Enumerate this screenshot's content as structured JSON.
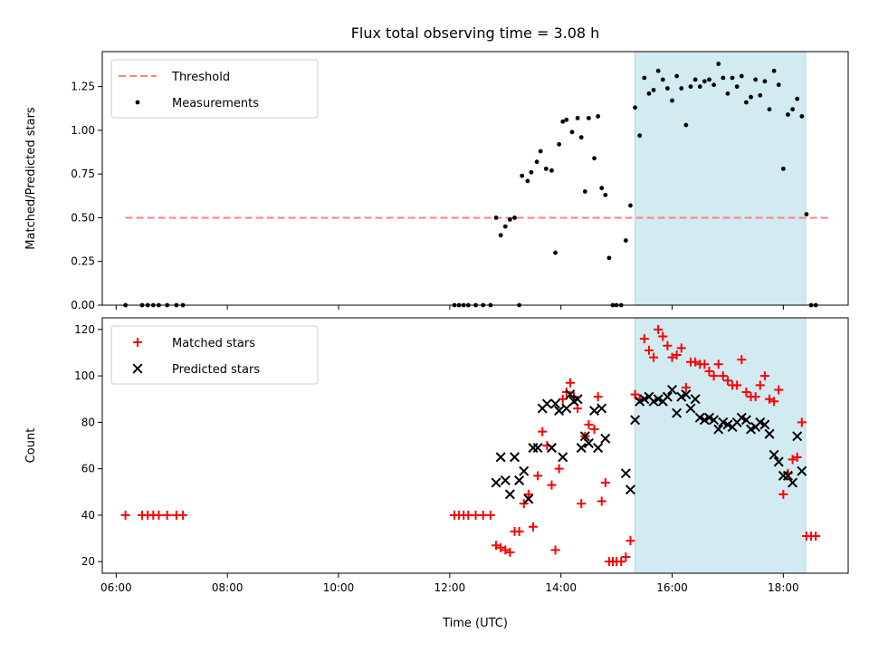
{
  "figure": {
    "title": "Flux total observing time = 3.08 h",
    "xlabel": "Time (UTC)"
  },
  "chart_data": [
    {
      "type": "scatter",
      "title": "Flux total observing time = 3.08 h",
      "xlabel": "",
      "ylabel": "Matched/Predicted stars",
      "xlim": [
        "05:45",
        "19:10"
      ],
      "ylim": [
        0,
        1.45
      ],
      "yticks": [
        0,
        0.25,
        0.5,
        0.75,
        1.0,
        1.25
      ],
      "ytick_labels": [
        "0.00",
        "0.25",
        "0.50",
        "0.75",
        "1.00",
        "1.25"
      ],
      "legend_position": "top-left",
      "highlight_span": {
        "from": "15:20",
        "to": "18:24",
        "color": "#add8e6"
      },
      "threshold": {
        "name": "Threshold",
        "value": 0.5,
        "from": "06:10",
        "to": "18:50",
        "color": "#ff7f7f"
      },
      "series": [
        {
          "name": "Measurements",
          "color": "#000000",
          "points": [
            [
              "06:10",
              0
            ],
            [
              "06:28",
              0
            ],
            [
              "06:34",
              0
            ],
            [
              "06:40",
              0
            ],
            [
              "06:46",
              0
            ],
            [
              "06:55",
              0
            ],
            [
              "07:05",
              0
            ],
            [
              "07:12",
              0
            ],
            [
              "12:05",
              0
            ],
            [
              "12:10",
              0
            ],
            [
              "12:15",
              0
            ],
            [
              "12:20",
              0
            ],
            [
              "12:28",
              0
            ],
            [
              "12:36",
              0
            ],
            [
              "12:44",
              0
            ],
            [
              "13:15",
              0
            ],
            [
              "12:50",
              0.5
            ],
            [
              "12:55",
              0.4
            ],
            [
              "13:00",
              0.45
            ],
            [
              "13:05",
              0.49
            ],
            [
              "13:10",
              0.5
            ],
            [
              "13:18",
              0.74
            ],
            [
              "13:24",
              0.71
            ],
            [
              "13:28",
              0.76
            ],
            [
              "13:34",
              0.82
            ],
            [
              "13:38",
              0.88
            ],
            [
              "13:44",
              0.78
            ],
            [
              "13:50",
              0.77
            ],
            [
              "13:54",
              0.3
            ],
            [
              "13:58",
              0.92
            ],
            [
              "14:02",
              1.05
            ],
            [
              "14:06",
              1.06
            ],
            [
              "14:12",
              0.99
            ],
            [
              "14:18",
              1.07
            ],
            [
              "14:22",
              0.96
            ],
            [
              "14:26",
              0.65
            ],
            [
              "14:30",
              1.07
            ],
            [
              "14:36",
              0.84
            ],
            [
              "14:40",
              1.08
            ],
            [
              "14:44",
              0.67
            ],
            [
              "14:48",
              0.63
            ],
            [
              "14:52",
              0.27
            ],
            [
              "14:56",
              0
            ],
            [
              "15:00",
              0
            ],
            [
              "15:05",
              0
            ],
            [
              "15:10",
              0.37
            ],
            [
              "15:15",
              0.57
            ],
            [
              "15:20",
              1.13
            ],
            [
              "15:25",
              0.97
            ],
            [
              "15:30",
              1.3
            ],
            [
              "15:35",
              1.21
            ],
            [
              "15:40",
              1.23
            ],
            [
              "15:45",
              1.34
            ],
            [
              "15:50",
              1.29
            ],
            [
              "15:55",
              1.24
            ],
            [
              "16:00",
              1.17
            ],
            [
              "16:05",
              1.31
            ],
            [
              "16:10",
              1.24
            ],
            [
              "16:15",
              1.03
            ],
            [
              "16:20",
              1.25
            ],
            [
              "16:25",
              1.29
            ],
            [
              "16:30",
              1.25
            ],
            [
              "16:35",
              1.28
            ],
            [
              "16:40",
              1.29
            ],
            [
              "16:45",
              1.26
            ],
            [
              "16:50",
              1.38
            ],
            [
              "16:55",
              1.3
            ],
            [
              "17:00",
              1.21
            ],
            [
              "17:05",
              1.3
            ],
            [
              "17:10",
              1.25
            ],
            [
              "17:15",
              1.31
            ],
            [
              "17:20",
              1.16
            ],
            [
              "17:25",
              1.19
            ],
            [
              "17:30",
              1.29
            ],
            [
              "17:35",
              1.2
            ],
            [
              "17:40",
              1.28
            ],
            [
              "17:45",
              1.12
            ],
            [
              "17:50",
              1.34
            ],
            [
              "17:55",
              1.26
            ],
            [
              "18:00",
              0.78
            ],
            [
              "18:05",
              1.09
            ],
            [
              "18:10",
              1.12
            ],
            [
              "18:15",
              1.18
            ],
            [
              "18:20",
              1.08
            ],
            [
              "18:25",
              0.52
            ],
            [
              "18:30",
              0
            ],
            [
              "18:35",
              0
            ]
          ]
        }
      ]
    },
    {
      "type": "scatter",
      "title": "",
      "xlabel": "Time (UTC)",
      "ylabel": "Count",
      "xlim": [
        "05:45",
        "19:10"
      ],
      "ylim": [
        15,
        125
      ],
      "yticks": [
        20,
        40,
        60,
        80,
        100,
        120
      ],
      "ytick_labels": [
        "20",
        "40",
        "60",
        "80",
        "100",
        "120"
      ],
      "xticks": [
        "06:00",
        "08:00",
        "10:00",
        "12:00",
        "14:00",
        "16:00",
        "18:00"
      ],
      "legend_position": "top-left",
      "highlight_span": {
        "from": "15:20",
        "to": "18:24",
        "color": "#add8e6"
      },
      "series": [
        {
          "name": "Matched stars",
          "marker": "+",
          "color": "#ff0000",
          "points": [
            [
              "06:10",
              40
            ],
            [
              "06:28",
              40
            ],
            [
              "06:34",
              40
            ],
            [
              "06:40",
              40
            ],
            [
              "06:46",
              40
            ],
            [
              "06:55",
              40
            ],
            [
              "07:05",
              40
            ],
            [
              "07:12",
              40
            ],
            [
              "12:05",
              40
            ],
            [
              "12:10",
              40
            ],
            [
              "12:15",
              40
            ],
            [
              "12:20",
              40
            ],
            [
              "12:28",
              40
            ],
            [
              "12:36",
              40
            ],
            [
              "12:44",
              40
            ],
            [
              "12:50",
              27
            ],
            [
              "12:55",
              26
            ],
            [
              "13:00",
              25
            ],
            [
              "13:05",
              24
            ],
            [
              "13:10",
              33
            ],
            [
              "13:15",
              33
            ],
            [
              "13:20",
              45
            ],
            [
              "13:25",
              49
            ],
            [
              "13:30",
              35
            ],
            [
              "13:35",
              57
            ],
            [
              "13:40",
              76
            ],
            [
              "13:45",
              70
            ],
            [
              "13:50",
              53
            ],
            [
              "13:54",
              25
            ],
            [
              "13:58",
              60
            ],
            [
              "14:02",
              90
            ],
            [
              "14:06",
              93
            ],
            [
              "14:10",
              97
            ],
            [
              "14:14",
              91
            ],
            [
              "14:18",
              86
            ],
            [
              "14:22",
              45
            ],
            [
              "14:26",
              74
            ],
            [
              "14:30",
              79
            ],
            [
              "14:36",
              77
            ],
            [
              "14:40",
              91
            ],
            [
              "14:44",
              46
            ],
            [
              "14:48",
              54
            ],
            [
              "14:52",
              20
            ],
            [
              "14:56",
              20
            ],
            [
              "15:00",
              20
            ],
            [
              "15:05",
              20
            ],
            [
              "15:10",
              22
            ],
            [
              "15:15",
              29
            ],
            [
              "15:20",
              92
            ],
            [
              "15:25",
              90
            ],
            [
              "15:30",
              116
            ],
            [
              "15:35",
              111
            ],
            [
              "15:40",
              108
            ],
            [
              "15:45",
              120
            ],
            [
              "15:50",
              117
            ],
            [
              "15:55",
              113
            ],
            [
              "16:00",
              108
            ],
            [
              "16:05",
              109
            ],
            [
              "16:10",
              112
            ],
            [
              "16:15",
              95
            ],
            [
              "16:20",
              106
            ],
            [
              "16:25",
              106
            ],
            [
              "16:30",
              105
            ],
            [
              "16:35",
              105
            ],
            [
              "16:40",
              102
            ],
            [
              "16:45",
              100
            ],
            [
              "16:50",
              105
            ],
            [
              "16:55",
              100
            ],
            [
              "17:00",
              98
            ],
            [
              "17:05",
              96
            ],
            [
              "17:10",
              96
            ],
            [
              "17:15",
              107
            ],
            [
              "17:20",
              93
            ],
            [
              "17:25",
              91
            ],
            [
              "17:30",
              91
            ],
            [
              "17:35",
              96
            ],
            [
              "17:40",
              100
            ],
            [
              "17:45",
              90
            ],
            [
              "17:50",
              89
            ],
            [
              "17:55",
              94
            ],
            [
              "18:00",
              49
            ],
            [
              "18:05",
              58
            ],
            [
              "18:10",
              64
            ],
            [
              "18:15",
              65
            ],
            [
              "18:20",
              80
            ],
            [
              "18:25",
              31
            ],
            [
              "18:30",
              31
            ],
            [
              "18:35",
              31
            ]
          ]
        },
        {
          "name": "Predicted stars",
          "marker": "x",
          "color": "#000000",
          "points": [
            [
              "12:50",
              54
            ],
            [
              "12:55",
              65
            ],
            [
              "13:00",
              55
            ],
            [
              "13:05",
              49
            ],
            [
              "13:10",
              65
            ],
            [
              "13:15",
              55
            ],
            [
              "13:20",
              59
            ],
            [
              "13:25",
              47
            ],
            [
              "13:30",
              69
            ],
            [
              "13:35",
              69
            ],
            [
              "13:40",
              86
            ],
            [
              "13:45",
              88
            ],
            [
              "13:50",
              69
            ],
            [
              "13:54",
              88
            ],
            [
              "13:58",
              85
            ],
            [
              "14:02",
              65
            ],
            [
              "14:06",
              86
            ],
            [
              "14:10",
              92
            ],
            [
              "14:14",
              89
            ],
            [
              "14:18",
              90
            ],
            [
              "14:22",
              69
            ],
            [
              "14:26",
              74
            ],
            [
              "14:30",
              71
            ],
            [
              "14:36",
              85
            ],
            [
              "14:40",
              69
            ],
            [
              "14:44",
              86
            ],
            [
              "14:48",
              73
            ],
            [
              "15:10",
              58
            ],
            [
              "15:15",
              51
            ],
            [
              "15:20",
              81
            ],
            [
              "15:25",
              89
            ],
            [
              "15:30",
              90
            ],
            [
              "15:35",
              91
            ],
            [
              "15:40",
              89
            ],
            [
              "15:45",
              90
            ],
            [
              "15:50",
              89
            ],
            [
              "15:55",
              91
            ],
            [
              "16:00",
              94
            ],
            [
              "16:05",
              84
            ],
            [
              "16:10",
              91
            ],
            [
              "16:15",
              92
            ],
            [
              "16:20",
              86
            ],
            [
              "16:25",
              90
            ],
            [
              "16:30",
              82
            ],
            [
              "16:35",
              81
            ],
            [
              "16:40",
              82
            ],
            [
              "16:45",
              81
            ],
            [
              "16:50",
              77
            ],
            [
              "16:55",
              80
            ],
            [
              "17:00",
              79
            ],
            [
              "17:05",
              78
            ],
            [
              "17:10",
              80
            ],
            [
              "17:15",
              82
            ],
            [
              "17:20",
              81
            ],
            [
              "17:25",
              77
            ],
            [
              "17:30",
              78
            ],
            [
              "17:35",
              80
            ],
            [
              "17:40",
              79
            ],
            [
              "17:45",
              75
            ],
            [
              "17:50",
              66
            ],
            [
              "17:55",
              63
            ],
            [
              "18:00",
              57
            ],
            [
              "18:05",
              57
            ],
            [
              "18:10",
              54
            ],
            [
              "18:15",
              74
            ],
            [
              "18:20",
              59
            ]
          ]
        }
      ]
    }
  ]
}
